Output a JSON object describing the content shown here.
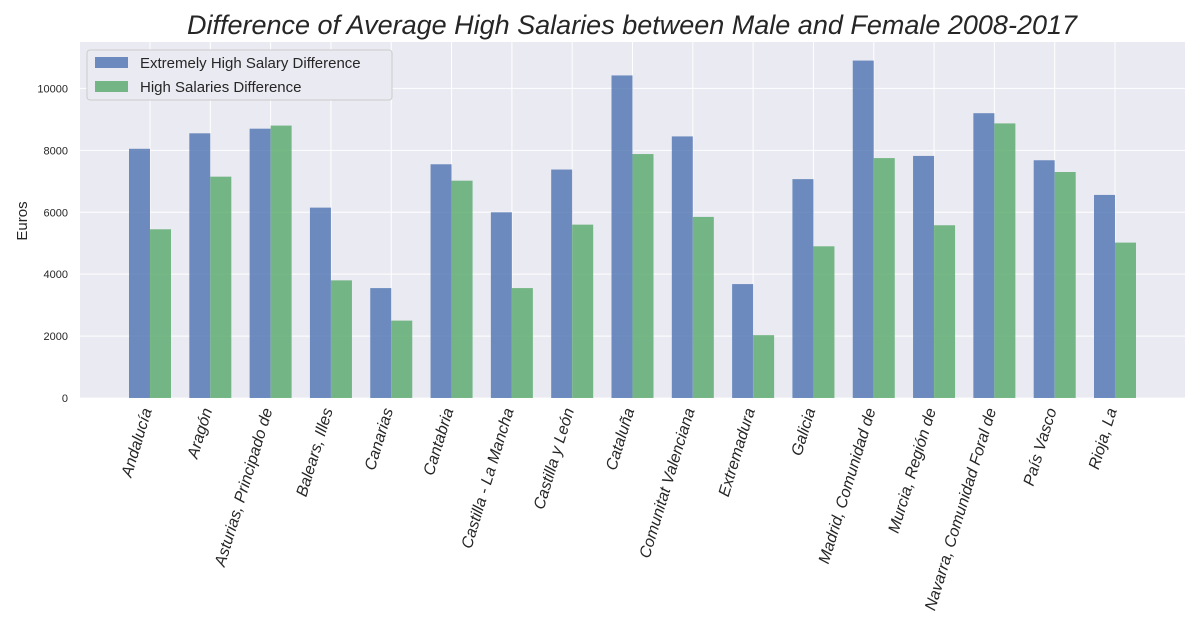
{
  "chart_data": {
    "type": "bar",
    "title": "Difference of Average High Salaries between Male and Female 2008-2017",
    "xlabel": "",
    "ylabel": "Euros",
    "ylim": [
      0,
      11500
    ],
    "yticks": [
      0,
      2000,
      4000,
      6000,
      8000,
      10000
    ],
    "grid": true,
    "legend_position": "top-left",
    "categories": [
      "Andalucía",
      "Aragón",
      "Asturias, Principado de",
      "Balears, Illes",
      "Canarias",
      "Cantabria",
      "Castilla - La Mancha",
      "Castilla y León",
      "Cataluña",
      "Comunitat Valenciana",
      "Extremadura",
      "Galicia",
      "Madrid, Comunidad de",
      "Murcia, Región de",
      "Navarra, Comunidad Foral de",
      "País Vasco",
      "Rioja, La"
    ],
    "series": [
      {
        "name": "Extremely High Salary Difference",
        "color": "#4c72b0",
        "values": [
          8050,
          8550,
          8700,
          6150,
          3550,
          7550,
          6000,
          7380,
          10420,
          8450,
          3680,
          7070,
          10900,
          7820,
          9200,
          7680,
          6560
        ]
      },
      {
        "name": "High Salaries Difference",
        "color": "#55a868",
        "values": [
          5450,
          7150,
          8800,
          3800,
          2500,
          7020,
          3550,
          5600,
          7880,
          5850,
          2030,
          4900,
          7750,
          5580,
          8870,
          7300,
          5020
        ]
      }
    ]
  }
}
